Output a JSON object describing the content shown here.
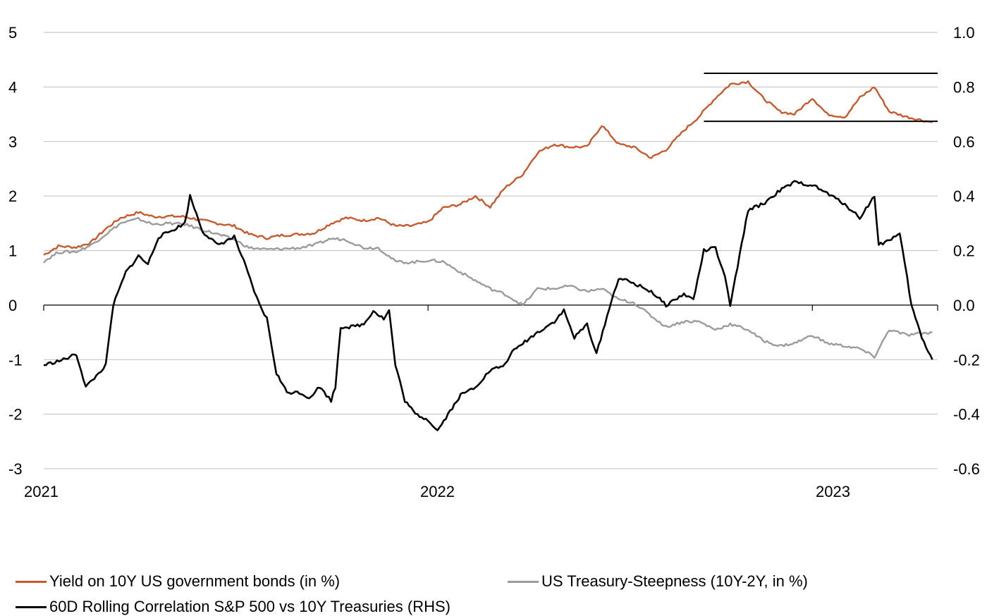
{
  "chart_data": {
    "type": "line",
    "x_range": [
      "2021-01-01",
      "2023-04-30"
    ],
    "ylim_left": [
      -3,
      5
    ],
    "ylim_right": [
      -0.6,
      1.0
    ],
    "y_ticks_left": [
      "5",
      "4",
      "3",
      "2",
      "1",
      "0",
      "-1",
      "-2",
      "-3"
    ],
    "y_ticks_right": [
      "1.0",
      "0.8",
      "0.6",
      "0.4",
      "0.2",
      "0.0",
      "-0.2",
      "-0.4",
      "-0.6"
    ],
    "x_ticks": [
      {
        "label": "2021",
        "date": "2021-01-01"
      },
      {
        "label": "2022",
        "date": "2022-01-01"
      },
      {
        "label": "2023",
        "date": "2023-01-01"
      }
    ],
    "grid": "horizontal",
    "legend_position": "bottom",
    "colors": {
      "yield": "#C55A2E",
      "steepness": "#9B9B9B",
      "correlation": "#000000",
      "grid": "#BFBFBF"
    },
    "series": [
      {
        "name": "Yield on 10Y US government bonds (in %)",
        "axis": "left",
        "color": "#C55A2E",
        "points": [
          [
            "2021-01-01",
            0.92
          ],
          [
            "2021-01-15",
            1.08
          ],
          [
            "2021-02-01",
            1.06
          ],
          [
            "2021-02-15",
            1.15
          ],
          [
            "2021-03-01",
            1.4
          ],
          [
            "2021-03-15",
            1.6
          ],
          [
            "2021-04-01",
            1.7
          ],
          [
            "2021-04-15",
            1.62
          ],
          [
            "2021-05-01",
            1.63
          ],
          [
            "2021-05-15",
            1.62
          ],
          [
            "2021-06-01",
            1.55
          ],
          [
            "2021-06-15",
            1.5
          ],
          [
            "2021-07-01",
            1.45
          ],
          [
            "2021-07-15",
            1.3
          ],
          [
            "2021-08-01",
            1.23
          ],
          [
            "2021-08-15",
            1.28
          ],
          [
            "2021-09-01",
            1.3
          ],
          [
            "2021-09-15",
            1.32
          ],
          [
            "2021-10-01",
            1.5
          ],
          [
            "2021-10-15",
            1.6
          ],
          [
            "2021-11-01",
            1.55
          ],
          [
            "2021-11-15",
            1.6
          ],
          [
            "2021-12-01",
            1.45
          ],
          [
            "2021-12-15",
            1.45
          ],
          [
            "2022-01-01",
            1.52
          ],
          [
            "2022-01-15",
            1.78
          ],
          [
            "2022-02-01",
            1.85
          ],
          [
            "2022-02-15",
            2.0
          ],
          [
            "2022-03-01",
            1.8
          ],
          [
            "2022-03-15",
            2.15
          ],
          [
            "2022-04-01",
            2.4
          ],
          [
            "2022-04-15",
            2.8
          ],
          [
            "2022-05-01",
            2.95
          ],
          [
            "2022-05-15",
            2.9
          ],
          [
            "2022-06-01",
            2.9
          ],
          [
            "2022-06-15",
            3.3
          ],
          [
            "2022-07-01",
            2.95
          ],
          [
            "2022-07-15",
            2.9
          ],
          [
            "2022-08-01",
            2.7
          ],
          [
            "2022-08-15",
            2.85
          ],
          [
            "2022-09-01",
            3.2
          ],
          [
            "2022-09-15",
            3.45
          ],
          [
            "2022-10-01",
            3.8
          ],
          [
            "2022-10-15",
            4.05
          ],
          [
            "2022-11-01",
            4.1
          ],
          [
            "2022-11-15",
            3.8
          ],
          [
            "2022-12-01",
            3.55
          ],
          [
            "2022-12-15",
            3.5
          ],
          [
            "2023-01-01",
            3.8
          ],
          [
            "2023-01-15",
            3.5
          ],
          [
            "2023-02-01",
            3.45
          ],
          [
            "2023-02-15",
            3.8
          ],
          [
            "2023-03-01",
            4.0
          ],
          [
            "2023-03-15",
            3.55
          ],
          [
            "2023-04-01",
            3.45
          ],
          [
            "2023-04-25",
            3.35
          ]
        ]
      },
      {
        "name": "US Treasury-Steepness (10Y-2Y, in %)",
        "axis": "left",
        "color": "#9B9B9B",
        "points": [
          [
            "2021-01-01",
            0.8
          ],
          [
            "2021-01-15",
            0.97
          ],
          [
            "2021-02-01",
            0.98
          ],
          [
            "2021-02-15",
            1.1
          ],
          [
            "2021-03-01",
            1.3
          ],
          [
            "2021-03-15",
            1.5
          ],
          [
            "2021-04-01",
            1.58
          ],
          [
            "2021-04-15",
            1.48
          ],
          [
            "2021-05-01",
            1.5
          ],
          [
            "2021-05-15",
            1.48
          ],
          [
            "2021-06-01",
            1.38
          ],
          [
            "2021-06-15",
            1.3
          ],
          [
            "2021-07-01",
            1.2
          ],
          [
            "2021-07-15",
            1.05
          ],
          [
            "2021-08-01",
            1.02
          ],
          [
            "2021-08-15",
            1.03
          ],
          [
            "2021-09-01",
            1.05
          ],
          [
            "2021-09-15",
            1.1
          ],
          [
            "2021-10-01",
            1.22
          ],
          [
            "2021-10-15",
            1.2
          ],
          [
            "2021-11-01",
            1.05
          ],
          [
            "2021-11-15",
            1.05
          ],
          [
            "2021-12-01",
            0.8
          ],
          [
            "2021-12-15",
            0.78
          ],
          [
            "2022-01-01",
            0.82
          ],
          [
            "2022-01-15",
            0.8
          ],
          [
            "2022-02-01",
            0.6
          ],
          [
            "2022-02-15",
            0.45
          ],
          [
            "2022-03-01",
            0.3
          ],
          [
            "2022-03-15",
            0.2
          ],
          [
            "2022-04-01",
            0.0
          ],
          [
            "2022-04-15",
            0.3
          ],
          [
            "2022-05-01",
            0.3
          ],
          [
            "2022-05-15",
            0.35
          ],
          [
            "2022-06-01",
            0.25
          ],
          [
            "2022-06-15",
            0.3
          ],
          [
            "2022-07-01",
            0.1
          ],
          [
            "2022-07-15",
            0.05
          ],
          [
            "2022-08-01",
            -0.2
          ],
          [
            "2022-08-15",
            -0.4
          ],
          [
            "2022-09-01",
            -0.3
          ],
          [
            "2022-09-15",
            -0.3
          ],
          [
            "2022-10-01",
            -0.45
          ],
          [
            "2022-10-15",
            -0.35
          ],
          [
            "2022-11-01",
            -0.45
          ],
          [
            "2022-11-15",
            -0.65
          ],
          [
            "2022-12-01",
            -0.75
          ],
          [
            "2022-12-15",
            -0.7
          ],
          [
            "2023-01-01",
            -0.55
          ],
          [
            "2023-01-15",
            -0.7
          ],
          [
            "2023-02-01",
            -0.75
          ],
          [
            "2023-02-15",
            -0.8
          ],
          [
            "2023-03-01",
            -0.95
          ],
          [
            "2023-03-15",
            -0.45
          ],
          [
            "2023-04-01",
            -0.55
          ],
          [
            "2023-04-25",
            -0.5
          ]
        ]
      },
      {
        "name": "60D Rolling Correlation S&P 500 vs 10Y Treasuries (RHS)",
        "axis": "right",
        "color": "#000000",
        "points": [
          [
            "2021-01-01",
            -0.22
          ],
          [
            "2021-01-20",
            -0.2
          ],
          [
            "2021-02-01",
            -0.18
          ],
          [
            "2021-02-10",
            -0.3
          ],
          [
            "2021-02-20",
            -0.26
          ],
          [
            "2021-03-01",
            -0.22
          ],
          [
            "2021-03-08",
            0.0
          ],
          [
            "2021-03-20",
            0.12
          ],
          [
            "2021-04-01",
            0.18
          ],
          [
            "2021-04-10",
            0.15
          ],
          [
            "2021-04-20",
            0.25
          ],
          [
            "2021-05-01",
            0.27
          ],
          [
            "2021-05-15",
            0.3
          ],
          [
            "2021-05-20",
            0.4
          ],
          [
            "2021-06-01",
            0.27
          ],
          [
            "2021-06-15",
            0.22
          ],
          [
            "2021-07-01",
            0.25
          ],
          [
            "2021-07-10",
            0.16
          ],
          [
            "2021-07-20",
            0.05
          ],
          [
            "2021-07-25",
            0.0
          ],
          [
            "2021-08-01",
            -0.05
          ],
          [
            "2021-08-10",
            -0.25
          ],
          [
            "2021-08-20",
            -0.32
          ],
          [
            "2021-09-01",
            -0.32
          ],
          [
            "2021-09-10",
            -0.34
          ],
          [
            "2021-09-20",
            -0.3
          ],
          [
            "2021-10-01",
            -0.35
          ],
          [
            "2021-10-05",
            -0.3
          ],
          [
            "2021-10-10",
            -0.08
          ],
          [
            "2021-10-20",
            -0.08
          ],
          [
            "2021-11-01",
            -0.07
          ],
          [
            "2021-11-10",
            -0.02
          ],
          [
            "2021-11-20",
            -0.05
          ],
          [
            "2021-11-25",
            -0.02
          ],
          [
            "2021-12-01",
            -0.22
          ],
          [
            "2021-12-10",
            -0.35
          ],
          [
            "2021-12-20",
            -0.4
          ],
          [
            "2022-01-01",
            -0.42
          ],
          [
            "2022-01-10",
            -0.46
          ],
          [
            "2022-01-20",
            -0.4
          ],
          [
            "2022-02-01",
            -0.33
          ],
          [
            "2022-02-15",
            -0.3
          ],
          [
            "2022-03-01",
            -0.24
          ],
          [
            "2022-03-15",
            -0.22
          ],
          [
            "2022-03-20",
            -0.18
          ],
          [
            "2022-04-01",
            -0.14
          ],
          [
            "2022-04-15",
            -0.1
          ],
          [
            "2022-05-01",
            -0.06
          ],
          [
            "2022-05-10",
            -0.02
          ],
          [
            "2022-05-20",
            -0.12
          ],
          [
            "2022-06-01",
            -0.07
          ],
          [
            "2022-06-10",
            -0.18
          ],
          [
            "2022-06-20",
            -0.04
          ],
          [
            "2022-07-01",
            0.1
          ],
          [
            "2022-07-15",
            0.08
          ],
          [
            "2022-08-01",
            0.05
          ],
          [
            "2022-08-15",
            0.0
          ],
          [
            "2022-09-01",
            0.04
          ],
          [
            "2022-09-10",
            0.02
          ],
          [
            "2022-09-20",
            0.2
          ],
          [
            "2022-10-01",
            0.21
          ],
          [
            "2022-10-10",
            0.1
          ],
          [
            "2022-10-15",
            0.0
          ],
          [
            "2022-10-20",
            0.1
          ],
          [
            "2022-11-01",
            0.35
          ],
          [
            "2022-11-15",
            0.37
          ],
          [
            "2022-12-01",
            0.42
          ],
          [
            "2022-12-15",
            0.45
          ],
          [
            "2023-01-01",
            0.44
          ],
          [
            "2023-01-15",
            0.41
          ],
          [
            "2023-02-01",
            0.37
          ],
          [
            "2023-02-15",
            0.32
          ],
          [
            "2023-03-01",
            0.4
          ],
          [
            "2023-03-05",
            0.22
          ],
          [
            "2023-03-15",
            0.24
          ],
          [
            "2023-03-25",
            0.26
          ],
          [
            "2023-04-01",
            0.1
          ],
          [
            "2023-04-05",
            0.0
          ],
          [
            "2023-04-15",
            -0.12
          ],
          [
            "2023-04-25",
            -0.2
          ]
        ]
      }
    ],
    "reference_lines": [
      {
        "axis": "left",
        "y": 4.25,
        "from": "2022-09-20",
        "to": "2023-04-30"
      },
      {
        "axis": "left",
        "y": 3.37,
        "from": "2022-09-20",
        "to": "2023-04-30"
      }
    ]
  },
  "legend": {
    "yield_label": "Yield on 10Y US government bonds (in %)",
    "steepness_label": "US Treasury-Steepness (10Y-2Y, in %)",
    "correlation_label": "60D Rolling Correlation S&P 500 vs 10Y Treasuries (RHS)"
  }
}
